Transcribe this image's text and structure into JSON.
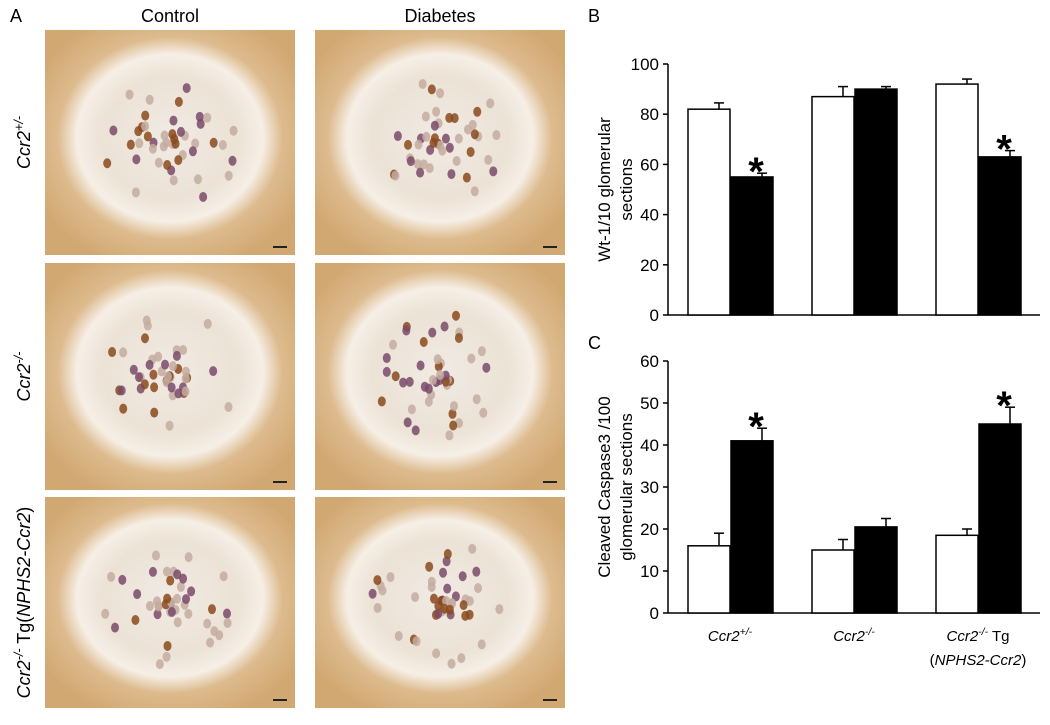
{
  "panel_a": {
    "label": "A",
    "columns": [
      "Control",
      "Diabetes"
    ],
    "rows": [
      [
        {
          "text": "Ccr2",
          "style": "italic"
        },
        {
          "text": "+/-",
          "style": "sup"
        }
      ],
      [
        {
          "text": "Ccr2",
          "style": "italic"
        },
        {
          "text": "-/-",
          "style": "sup"
        }
      ],
      [
        {
          "text": "Ccr2",
          "style": "italic"
        },
        {
          "text": "-/-",
          "style": "sup"
        },
        {
          "text": " Tg(",
          "style": "plain"
        },
        {
          "text": "NPHS2-Ccr2",
          "style": "italic"
        },
        {
          "text": ")",
          "style": "plain"
        }
      ]
    ]
  },
  "chart_data": [
    {
      "type": "bar",
      "panel_label": "B",
      "ylabel": [
        "Wt-1/10 glomerular",
        "sections"
      ],
      "categories": [
        null,
        null,
        null
      ],
      "series": [
        {
          "color": "#ffffff",
          "values": [
            82,
            87,
            92
          ],
          "errors": [
            2.5,
            4,
            2
          ]
        },
        {
          "color": "#000000",
          "values": [
            55,
            90,
            63
          ],
          "errors": [
            1.5,
            1,
            2.5
          ],
          "significance": [
            "*",
            null,
            "*"
          ]
        }
      ],
      "ylim": [
        0,
        100
      ],
      "yticks": [
        0,
        20,
        40,
        60,
        80,
        100
      ]
    },
    {
      "type": "bar",
      "panel_label": "C",
      "ylabel": [
        "Cleaved Caspase3 /100",
        "glomerular sections"
      ],
      "categories": [
        [
          [
            {
              "text": "Ccr2",
              "style": "italic"
            },
            {
              "text": "+/-",
              "style": "sup"
            }
          ]
        ],
        [
          [
            {
              "text": "Ccr2",
              "style": "italic"
            },
            {
              "text": "-/-",
              "style": "sup"
            }
          ]
        ],
        [
          [
            {
              "text": "Ccr2",
              "style": "italic"
            },
            {
              "text": "-/-",
              "style": "sup"
            },
            {
              "text": " Tg",
              "style": "plain"
            }
          ],
          [
            {
              "text": "(",
              "style": "plain"
            },
            {
              "text": "NPHS2-Ccr2",
              "style": "italic"
            },
            {
              "text": ")",
              "style": "plain"
            }
          ]
        ]
      ],
      "series": [
        {
          "color": "#ffffff",
          "values": [
            16,
            15,
            18.5
          ],
          "errors": [
            3,
            2.5,
            1.5
          ]
        },
        {
          "color": "#000000",
          "values": [
            41,
            20.5,
            45
          ],
          "errors": [
            3,
            2,
            4
          ],
          "significance": [
            "*",
            null,
            "*"
          ]
        }
      ],
      "ylim": [
        0,
        60
      ],
      "yticks": [
        0,
        10,
        20,
        30,
        40,
        50,
        60
      ]
    }
  ]
}
